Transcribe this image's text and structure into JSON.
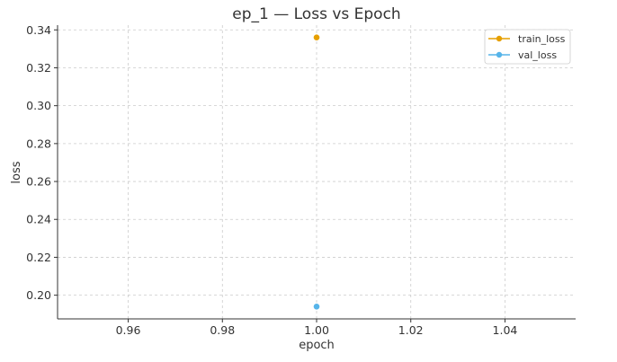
{
  "chart_data": {
    "type": "line",
    "title": "ep_1 — Loss vs Epoch",
    "xlabel": "epoch",
    "ylabel": "loss",
    "xlim": [
      0.945,
      1.055
    ],
    "ylim": [
      0.1875,
      0.3425
    ],
    "xticks": [
      0.96,
      0.98,
      1.0,
      1.02,
      1.04
    ],
    "xtick_labels": [
      "0.96",
      "0.98",
      "1.00",
      "1.02",
      "1.04"
    ],
    "yticks": [
      0.2,
      0.22,
      0.24,
      0.26,
      0.28,
      0.3,
      0.32,
      0.34
    ],
    "ytick_labels": [
      "0.20",
      "0.22",
      "0.24",
      "0.26",
      "0.28",
      "0.30",
      "0.32",
      "0.34"
    ],
    "grid": true,
    "legend_position": "top-right",
    "series": [
      {
        "name": "train_loss",
        "color": "#E69F00",
        "x": [
          1.0
        ],
        "y": [
          0.336
        ]
      },
      {
        "name": "val_loss",
        "color": "#56B4E9",
        "x": [
          1.0
        ],
        "y": [
          0.194
        ]
      }
    ]
  }
}
